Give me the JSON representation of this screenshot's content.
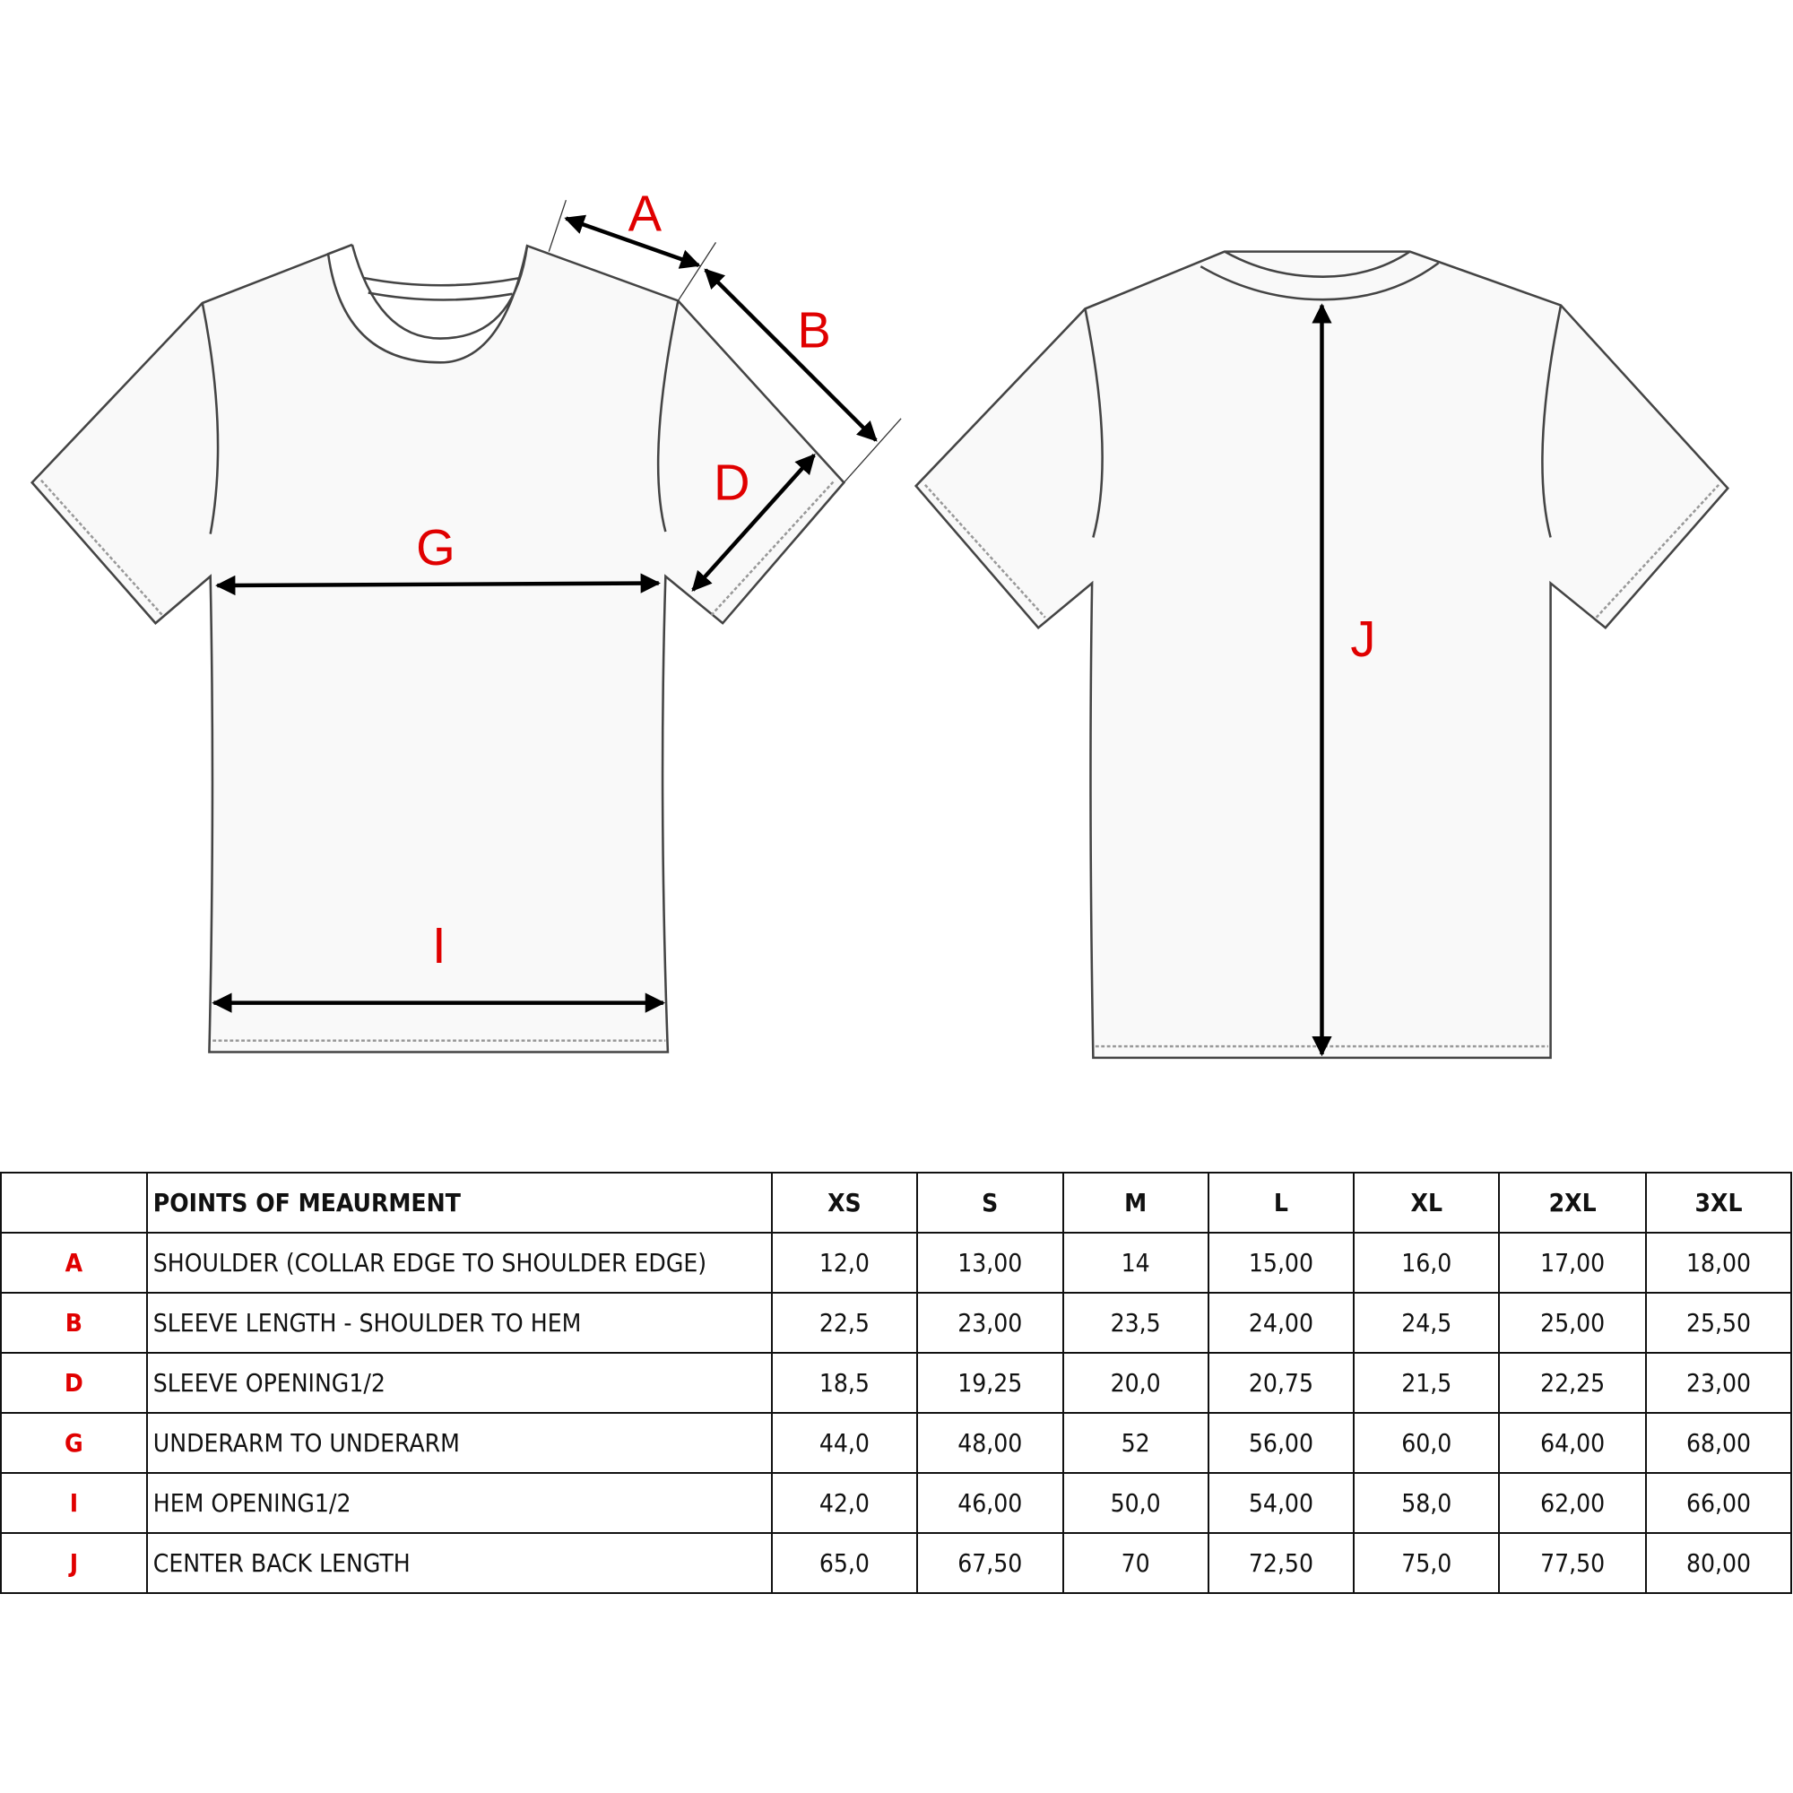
{
  "diagram": {
    "labels": {
      "A": "A",
      "B": "B",
      "D": "D",
      "G": "G",
      "I": "I",
      "J": "J"
    },
    "label_color": "#e00000",
    "views": [
      "front",
      "back"
    ]
  },
  "table": {
    "header": {
      "code": "",
      "description": "POINTS OF MEAURMENT",
      "sizes": [
        "XS",
        "S",
        "M",
        "L",
        "XL",
        "2XL",
        "3XL"
      ]
    },
    "rows": [
      {
        "code": "A",
        "description": "SHOULDER (COLLAR EDGE TO SHOULDER EDGE)",
        "values": [
          "12,0",
          "13,00",
          "14",
          "15,00",
          "16,0",
          "17,00",
          "18,00"
        ]
      },
      {
        "code": "B",
        "description": "SLEEVE LENGTH - SHOULDER TO HEM",
        "values": [
          "22,5",
          "23,00",
          "23,5",
          "24,00",
          "24,5",
          "25,00",
          "25,50"
        ]
      },
      {
        "code": "D",
        "description": "SLEEVE OPENING1/2",
        "values": [
          "18,5",
          "19,25",
          "20,0",
          "20,75",
          "21,5",
          "22,25",
          "23,00"
        ]
      },
      {
        "code": "G",
        "description": "UNDERARM TO UNDERARM",
        "values": [
          "44,0",
          "48,00",
          "52",
          "56,00",
          "60,0",
          "64,00",
          "68,00"
        ]
      },
      {
        "code": "I",
        "description": "HEM OPENING1/2",
        "values": [
          "42,0",
          "46,00",
          "50,0",
          "54,00",
          "58,0",
          "62,00",
          "66,00"
        ]
      },
      {
        "code": "J",
        "description": "CENTER BACK LENGTH",
        "values": [
          "65,0",
          "67,50",
          "70",
          "72,50",
          "75,0",
          "77,50",
          "80,00"
        ]
      }
    ]
  }
}
